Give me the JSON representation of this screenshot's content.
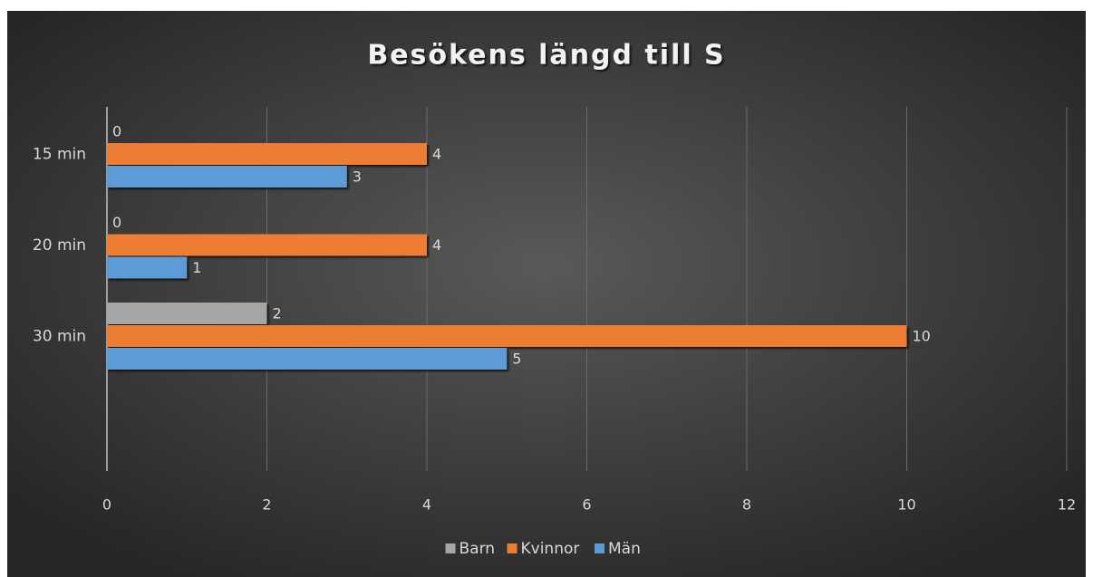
{
  "chart_data": {
    "type": "hbar",
    "title": "Besökens längd till S",
    "categories": [
      "15 min",
      "20 min",
      "30 min",
      null
    ],
    "series": [
      {
        "name": "Barn",
        "color": "#a5a5a5",
        "values": [
          0,
          0,
          2,
          null
        ]
      },
      {
        "name": "Kvinnor",
        "color": "#ed7d31",
        "values": [
          4,
          4,
          10,
          null
        ]
      },
      {
        "name": "Män",
        "color": "#5b9bd5",
        "values": [
          3,
          1,
          5,
          null
        ]
      }
    ],
    "xlim": [
      0,
      12
    ],
    "xticks": [
      0,
      2,
      4,
      6,
      8,
      10,
      12
    ],
    "grid": true,
    "legend": "bottom"
  }
}
